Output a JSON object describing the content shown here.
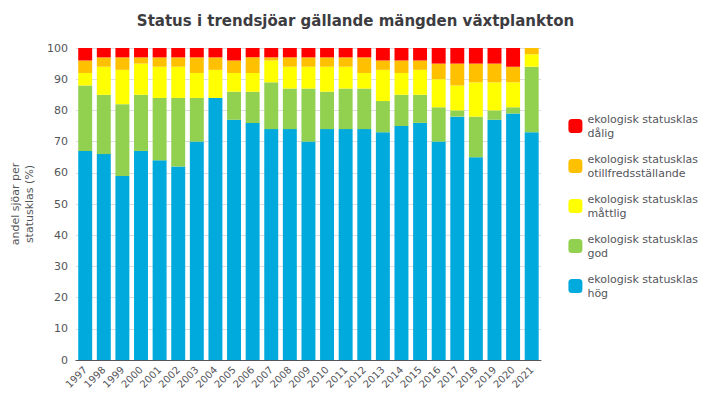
{
  "chart_data": {
    "type": "bar",
    "title": "Status i trendsjöar gällande mängden växtplankton",
    "ylabel": "andel sjöar per\nstatusklas (%)",
    "categories": [
      "1997",
      "1998",
      "1999",
      "2000",
      "2001",
      "2002",
      "2003",
      "2004",
      "2005",
      "2006",
      "2007",
      "2008",
      "2009",
      "2010",
      "2011",
      "2012",
      "2013",
      "2014",
      "2015",
      "2016",
      "2017",
      "2018",
      "2019",
      "2020",
      "2021"
    ],
    "series": [
      {
        "name": "ekologisk statusklas\nhög",
        "color": "#00AADD",
        "values": [
          67,
          66,
          59,
          67,
          64,
          62,
          70,
          84,
          77,
          76,
          74,
          74,
          70,
          74,
          74,
          74,
          73,
          75,
          76,
          70,
          78,
          65,
          77,
          79,
          73
        ]
      },
      {
        "name": "ekologisk statusklas\ngod",
        "color": "#92D050",
        "values": [
          21,
          19,
          23,
          18,
          20,
          22,
          14,
          0,
          9,
          10,
          15,
          13,
          17,
          12,
          13,
          13,
          10,
          10,
          9,
          11,
          2,
          13,
          3,
          2,
          21
        ]
      },
      {
        "name": "ekologisk statusklas\nmåttlig",
        "color": "#FFFF00",
        "values": [
          4,
          9,
          11,
          10,
          10,
          10,
          8,
          9,
          6,
          6,
          7,
          7,
          7,
          8,
          7,
          5,
          10,
          7,
          8,
          9,
          8,
          11,
          9,
          8,
          4
        ]
      },
      {
        "name": "ekologisk statusklas\notillfredsställande",
        "color": "#FFC000",
        "values": [
          4,
          3,
          4,
          2,
          3,
          3,
          5,
          4,
          4,
          5,
          1,
          3,
          3,
          3,
          3,
          5,
          3,
          4,
          3,
          5,
          7,
          6,
          6,
          5,
          2
        ]
      },
      {
        "name": "ekologisk statusklas\ndålig",
        "color": "#FF0000",
        "values": [
          4,
          3,
          3,
          3,
          3,
          3,
          3,
          3,
          4,
          3,
          3,
          3,
          3,
          3,
          3,
          3,
          4,
          4,
          4,
          5,
          5,
          5,
          5,
          6,
          0
        ]
      }
    ],
    "stacked": true,
    "ylim": [
      0,
      100
    ],
    "yticks": [
      0,
      10,
      20,
      30,
      40,
      50,
      60,
      70,
      80,
      90,
      100
    ],
    "grid": true,
    "legend": "right"
  }
}
